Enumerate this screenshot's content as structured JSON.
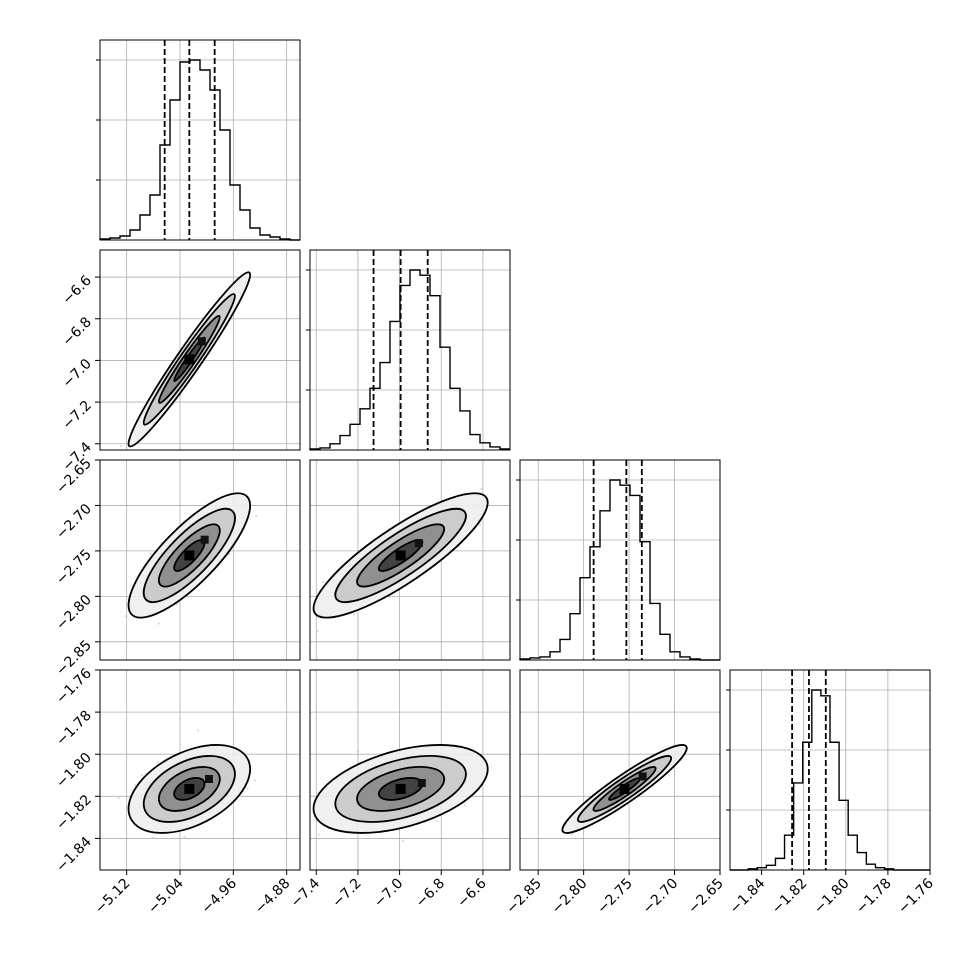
{
  "chart_data": {
    "type": "corner",
    "parameters": [
      {
        "label": "",
        "range": [
          -5.16,
          -4.86
        ],
        "ticks": [
          "−5.12",
          "−5.04",
          "−4.96",
          "−4.88"
        ],
        "tick_values": [
          -5.12,
          -5.04,
          -4.96,
          -4.88
        ]
      },
      {
        "label": "",
        "range": [
          -7.43,
          -6.47
        ],
        "ticks": [
          "−7.4",
          "−7.2",
          "−7.0",
          "−6.8",
          "−6.6"
        ],
        "tick_values": [
          -7.4,
          -7.2,
          -7.0,
          -6.8,
          -6.6
        ]
      },
      {
        "label": "",
        "range": [
          -2.87,
          -2.65
        ],
        "ticks": [
          "−2.85",
          "−2.80",
          "−2.75",
          "−2.70",
          "−2.65"
        ],
        "tick_values": [
          -2.85,
          -2.8,
          -2.75,
          -2.7,
          -2.65
        ]
      },
      {
        "label": "",
        "range": [
          -1.855,
          -1.76
        ],
        "ticks": [
          "−1.84",
          "−1.82",
          "−1.80",
          "−1.78",
          "−1.76"
        ],
        "tick_values": [
          -1.84,
          -1.82,
          -1.8,
          -1.78,
          -1.76
        ]
      }
    ],
    "histograms": [
      {
        "counts": [
          1,
          2,
          4,
          10,
          25,
          45,
          95,
          140,
          178,
          180,
          170,
          150,
          110,
          55,
          30,
          12,
          5,
          3,
          1,
          0
        ],
        "quantiles": [
          -5.063,
          -5.026,
          -4.988
        ]
      },
      {
        "counts": [
          1,
          2,
          6,
          14,
          25,
          40,
          60,
          85,
          125,
          160,
          175,
          170,
          150,
          100,
          60,
          38,
          15,
          7,
          3,
          1
        ],
        "quantiles": [
          -7.125,
          -6.995,
          -6.865
        ]
      },
      {
        "counts": [
          1,
          2,
          3,
          8,
          20,
          45,
          80,
          110,
          145,
          175,
          170,
          160,
          115,
          55,
          25,
          8,
          3,
          1,
          0,
          0
        ],
        "quantiles": [
          -2.789,
          -2.753,
          -2.736
        ]
      },
      {
        "counts": [
          0,
          0,
          1,
          2,
          4,
          10,
          30,
          75,
          110,
          155,
          150,
          110,
          60,
          30,
          15,
          5,
          2,
          1,
          0,
          0,
          0,
          0
        ],
        "quantiles": [
          -1.8255,
          -1.8175,
          -1.8095
        ]
      }
    ],
    "pairs": [
      {
        "x": 0,
        "y": 1,
        "correlation": 0.97,
        "center": [
          -5.026,
          -6.995
        ],
        "sigma": [
          0.024,
          0.11
        ]
      },
      {
        "x": 0,
        "y": 2,
        "correlation": 0.8,
        "center": [
          -5.026,
          -2.755
        ],
        "sigma": [
          0.024,
          0.018
        ]
      },
      {
        "x": 0,
        "y": 3,
        "correlation": 0.45,
        "center": [
          -5.026,
          -1.8165
        ],
        "sigma": [
          0.024,
          0.0055
        ]
      },
      {
        "x": 1,
        "y": 2,
        "correlation": 0.85,
        "center": [
          -6.995,
          -2.755
        ],
        "sigma": [
          0.11,
          0.018
        ]
      },
      {
        "x": 1,
        "y": 3,
        "correlation": 0.45,
        "center": [
          -6.995,
          -1.8165
        ],
        "sigma": [
          0.11,
          0.0055
        ]
      },
      {
        "x": 2,
        "y": 3,
        "correlation": 0.93,
        "center": [
          -2.755,
          -1.8165
        ],
        "sigma": [
          0.018,
          0.0055
        ]
      }
    ],
    "contour_levels_sigma": [
      0.5,
      1.0,
      1.5,
      2.0
    ],
    "grid": true,
    "title": "",
    "legend": ""
  }
}
